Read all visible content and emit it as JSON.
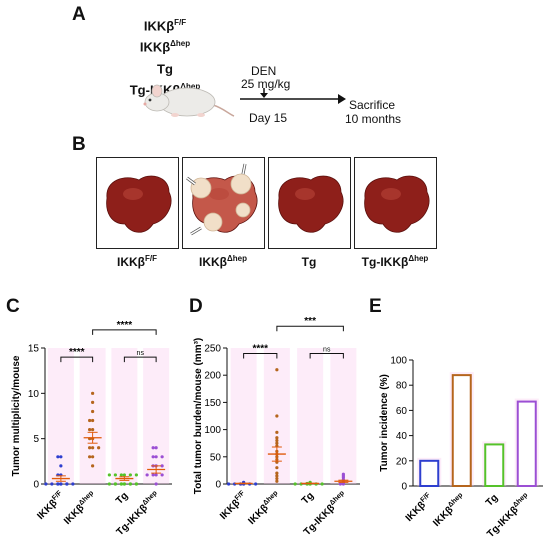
{
  "panels": {
    "a": "A",
    "b": "B",
    "c": "C",
    "d": "D",
    "e": "E"
  },
  "genotypes": [
    {
      "base": "IKKβ",
      "sup": "F/F"
    },
    {
      "base": "IKKβ",
      "sup": "Δhep"
    },
    {
      "base": "Tg",
      "sup": ""
    },
    {
      "base": "Tg-IKKβ",
      "sup": "Δhep"
    }
  ],
  "timeline": {
    "treatment": "DEN",
    "dose": "25 mg/kg",
    "day": "Day 15",
    "end": "Sacrifice",
    "duration": "10 months"
  },
  "livers": [
    {
      "base": "IKKβ",
      "sup": "F/F",
      "nodules": false
    },
    {
      "base": "IKKβ",
      "sup": "Δhep",
      "nodules": true
    },
    {
      "base": "Tg",
      "sup": "",
      "nodules": false
    },
    {
      "base": "Tg-IKKβ",
      "sup": "Δhep",
      "nodules": false
    }
  ],
  "colors": {
    "g1": "#2e3fcf",
    "g2": "#b5651d",
    "g3": "#55c22a",
    "g4": "#9b4fd4",
    "mean": "#e05a0a",
    "halo": "#f9c8ee"
  },
  "chart_data": [
    {
      "type": "scatter",
      "ylabel": "Tumor multiplicity/mouse",
      "ylim": [
        0,
        15
      ],
      "yticks": [
        0,
        5,
        10,
        15
      ],
      "categories": [
        "IKKβ^F/F",
        "IKKβ^Δhep",
        "Tg",
        "Tg-IKKβ^Δhep"
      ],
      "series": [
        {
          "values": [
            0,
            0,
            0,
            0,
            0,
            0,
            0,
            0,
            0,
            1,
            1,
            2,
            3,
            3
          ],
          "mean": 0.6,
          "sem": 0.3
        },
        {
          "values": [
            2,
            3,
            3,
            4,
            4,
            4,
            5,
            5,
            6,
            6,
            7,
            7,
            8,
            9,
            10
          ],
          "mean": 5.1,
          "sem": 0.6
        },
        {
          "values": [
            0,
            0,
            0,
            0,
            0,
            0,
            0,
            0,
            0,
            0,
            0,
            1,
            1,
            1,
            1,
            1,
            1
          ],
          "mean": 0.6,
          "sem": 0.2
        },
        {
          "values": [
            0,
            1,
            1,
            1,
            1,
            2,
            2,
            2,
            3,
            3,
            3,
            4,
            4
          ],
          "mean": 1.6,
          "sem": 0.4
        }
      ],
      "comparisons": [
        {
          "from": 0,
          "to": 1,
          "y": 14.0,
          "label": "****"
        },
        {
          "from": 1,
          "to": 3,
          "y": 17.0,
          "label": "****"
        },
        {
          "from": 2,
          "to": 3,
          "y": 14.0,
          "label": "ns"
        }
      ]
    },
    {
      "type": "scatter",
      "ylabel": "Total tumor burden/mouse (mm³)",
      "ylim": [
        0,
        250
      ],
      "yticks": [
        0,
        50,
        100,
        150,
        200,
        250
      ],
      "categories": [
        "IKKβ^F/F",
        "IKKβ^Δhep",
        "Tg",
        "Tg-IKKβ^Δhep"
      ],
      "series": [
        {
          "values": [
            0,
            0,
            0,
            0,
            0,
            0,
            0,
            0,
            1,
            2,
            3
          ],
          "mean": 1,
          "sem": 0.4
        },
        {
          "values": [
            5,
            10,
            15,
            20,
            30,
            40,
            45,
            50,
            55,
            60,
            70,
            75,
            80,
            85,
            95,
            125,
            210
          ],
          "mean": 55,
          "sem": 13
        },
        {
          "values": [
            0,
            0,
            0,
            0,
            0,
            0,
            0,
            0,
            0,
            1,
            1,
            2,
            3
          ],
          "mean": 1,
          "sem": 0.3
        },
        {
          "values": [
            0,
            0,
            1,
            2,
            3,
            5,
            8,
            12,
            15,
            18
          ],
          "mean": 5,
          "sem": 2
        }
      ],
      "comparisons": [
        {
          "from": 0,
          "to": 1,
          "y": 240,
          "label": "****"
        },
        {
          "from": 1,
          "to": 3,
          "y": 290,
          "label": "***"
        },
        {
          "from": 2,
          "to": 3,
          "y": 240,
          "label": "ns"
        }
      ]
    },
    {
      "type": "bar",
      "ylabel": "Tumor incidence (%)",
      "ylim": [
        0,
        100
      ],
      "yticks": [
        0,
        20,
        40,
        60,
        80,
        100
      ],
      "categories": [
        "IKKβ^F/F",
        "IKKβ^Δhep",
        "Tg",
        "Tg-IKKβ^Δhep"
      ],
      "values": [
        20,
        88,
        33,
        67
      ]
    }
  ]
}
